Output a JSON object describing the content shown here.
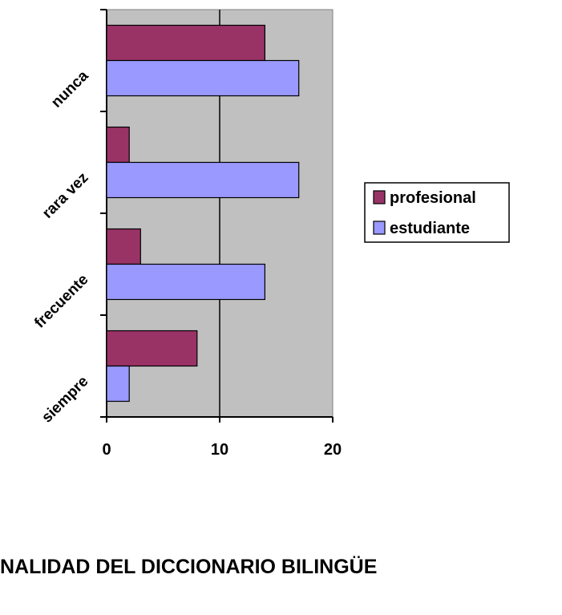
{
  "chart_data": {
    "type": "bar",
    "orientation": "horizontal",
    "title": "NALIDAD DEL DICCIONARIO BILINGÜE",
    "categories": [
      "siempre",
      "frecuente",
      "rara vez",
      "nunca"
    ],
    "series": [
      {
        "name": "profesional",
        "color": "#993366",
        "values": [
          8,
          3,
          2,
          14
        ]
      },
      {
        "name": "estudiante",
        "color": "#9999ff",
        "values": [
          2,
          14,
          17,
          17
        ]
      }
    ],
    "xlim": [
      0,
      20
    ],
    "xticks": [
      0,
      10,
      20
    ],
    "grid": true,
    "legend": "right"
  }
}
